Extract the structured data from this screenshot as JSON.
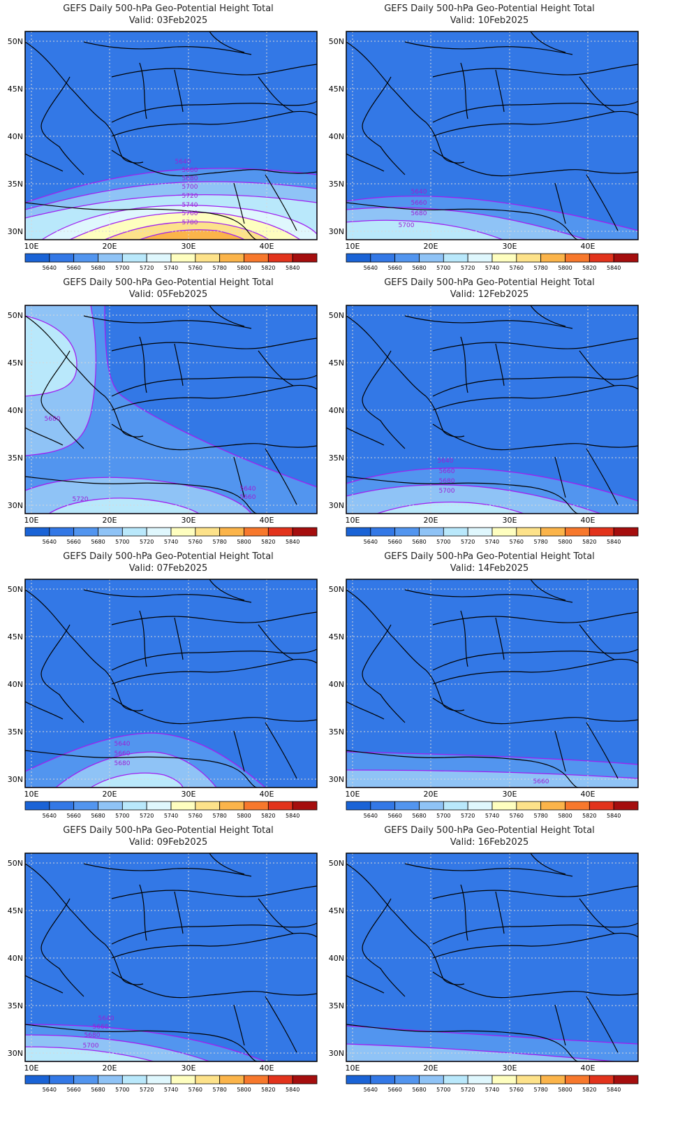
{
  "title_line": "GEFS Daily 500-hPa Geo-Potential Height Total",
  "valid_prefix": "Valid:",
  "lat_labels": [
    "50N",
    "45N",
    "40N",
    "35N",
    "30N"
  ],
  "lon_labels": [
    "10E",
    "20E",
    "30E",
    "40E"
  ],
  "colorbar": {
    "levels": [
      "5640",
      "5660",
      "5680",
      "5700",
      "5720",
      "5740",
      "5760",
      "5780",
      "5800",
      "5820",
      "5840"
    ],
    "colors": [
      "#1a63d6",
      "#3378e6",
      "#5295ef",
      "#8fc3f6",
      "#b9e8fb",
      "#dff7fd",
      "#fefebf",
      "#fde28a",
      "#fbb44a",
      "#f7782c",
      "#e2331c",
      "#a50e0e"
    ]
  },
  "panels": [
    {
      "id": "p0",
      "valid": "03Feb2025",
      "contour_labels": [
        "5640",
        "5660",
        "5680",
        "5700",
        "5720",
        "5740",
        "5760",
        "5780"
      ]
    },
    {
      "id": "p1",
      "valid": "10Feb2025",
      "contour_labels": [
        "5640",
        "5660",
        "5680",
        "5700"
      ]
    },
    {
      "id": "p2",
      "valid": "05Feb2025",
      "contour_labels": [
        "5680",
        "5720",
        "5640",
        "5660"
      ]
    },
    {
      "id": "p3",
      "valid": "12Feb2025",
      "contour_labels": [
        "5640",
        "5660",
        "5680",
        "5700"
      ]
    },
    {
      "id": "p4",
      "valid": "07Feb2025",
      "contour_labels": [
        "5640",
        "5660",
        "5680"
      ]
    },
    {
      "id": "p5",
      "valid": "14Feb2025",
      "contour_labels": [
        "5660"
      ]
    },
    {
      "id": "p6",
      "valid": "09Feb2025",
      "contour_labels": [
        "5640",
        "5660",
        "5680",
        "5700"
      ]
    },
    {
      "id": "p7",
      "valid": "16Feb2025",
      "contour_labels": []
    }
  ]
}
